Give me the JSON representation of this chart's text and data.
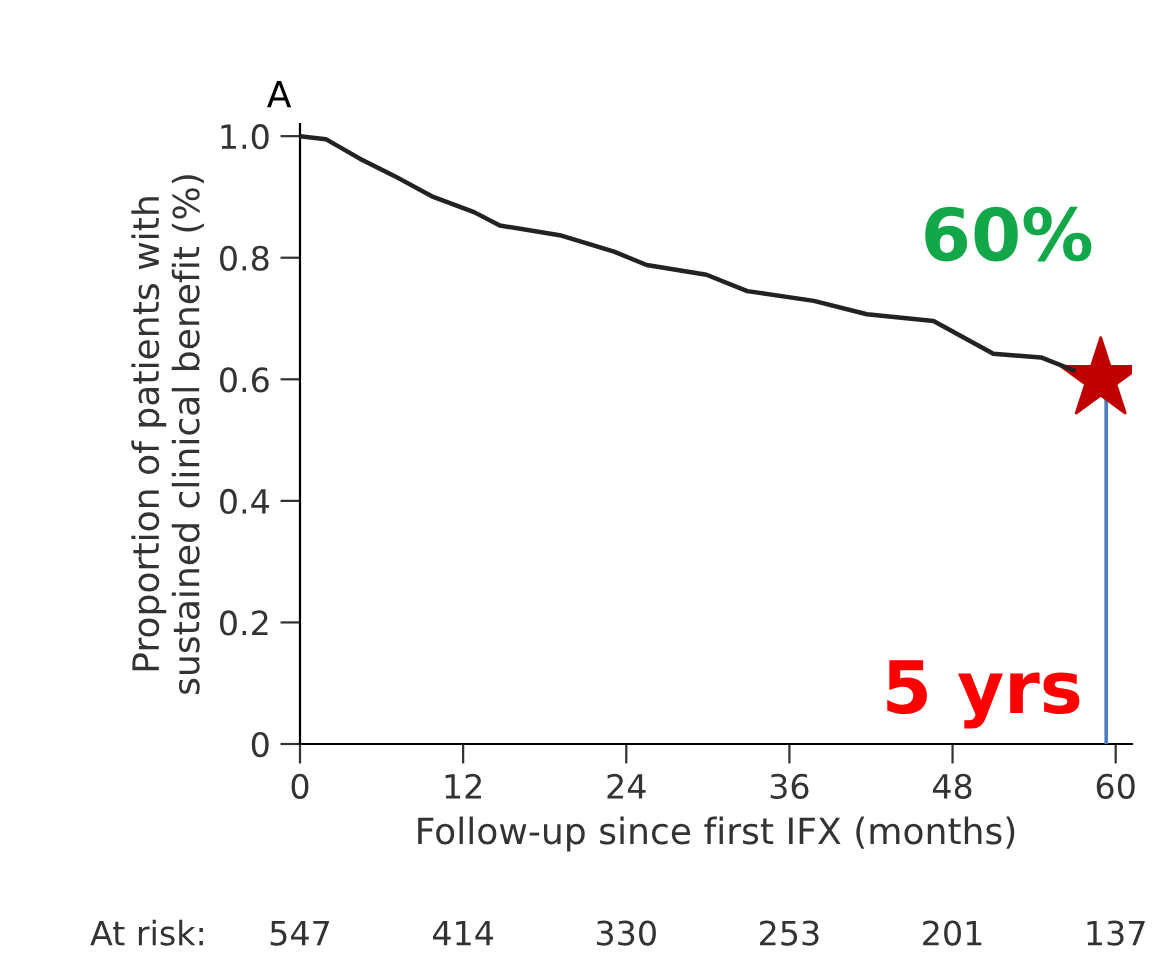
{
  "chart_data": {
    "type": "line",
    "title": "A",
    "xlabel": "Follow-up since first IFX (months)",
    "ylabel": "Proportion of patients with\nsustained clinical benefit (%)",
    "xlim": [
      0,
      61.2
    ],
    "xticks": [
      0,
      12,
      24,
      36,
      48,
      60
    ],
    "ylim": [
      0,
      1.02
    ],
    "yticks": [
      {
        "value": 0,
        "label": "0"
      },
      0.2,
      0.4,
      0.6,
      0.8,
      {
        "value": 1.0,
        "label": "1.0"
      }
    ],
    "grid": false,
    "series": [
      {
        "color": "#222222",
        "x": [
          0,
          1.9,
          4.4,
          6.9,
          9.8,
          12.8,
          14.7,
          19.1,
          23.1,
          25.5,
          29.9,
          32.9,
          37.8,
          41.7,
          46.6,
          51,
          54.5,
          56.9
        ],
        "values": [
          1.0,
          0.995,
          0.963,
          0.935,
          0.9,
          0.875,
          0.853,
          0.837,
          0.81,
          0.788,
          0.772,
          0.745,
          0.729,
          0.707,
          0.696,
          0.642,
          0.636,
          0.615
        ]
      },
      {
        "type": "scatter",
        "marker": "star",
        "color": "#c00000",
        "x": [
          58.9
        ],
        "values": [
          0.6
        ]
      }
    ],
    "ref_lines": [
      {
        "axis": "x",
        "value": 59.3,
        "color": "#4a7fc1"
      }
    ],
    "annotations": [
      "60%",
      "5 yrs",
      "At risk:",
      "547",
      "414",
      "330",
      "253",
      "201",
      "137"
    ]
  }
}
